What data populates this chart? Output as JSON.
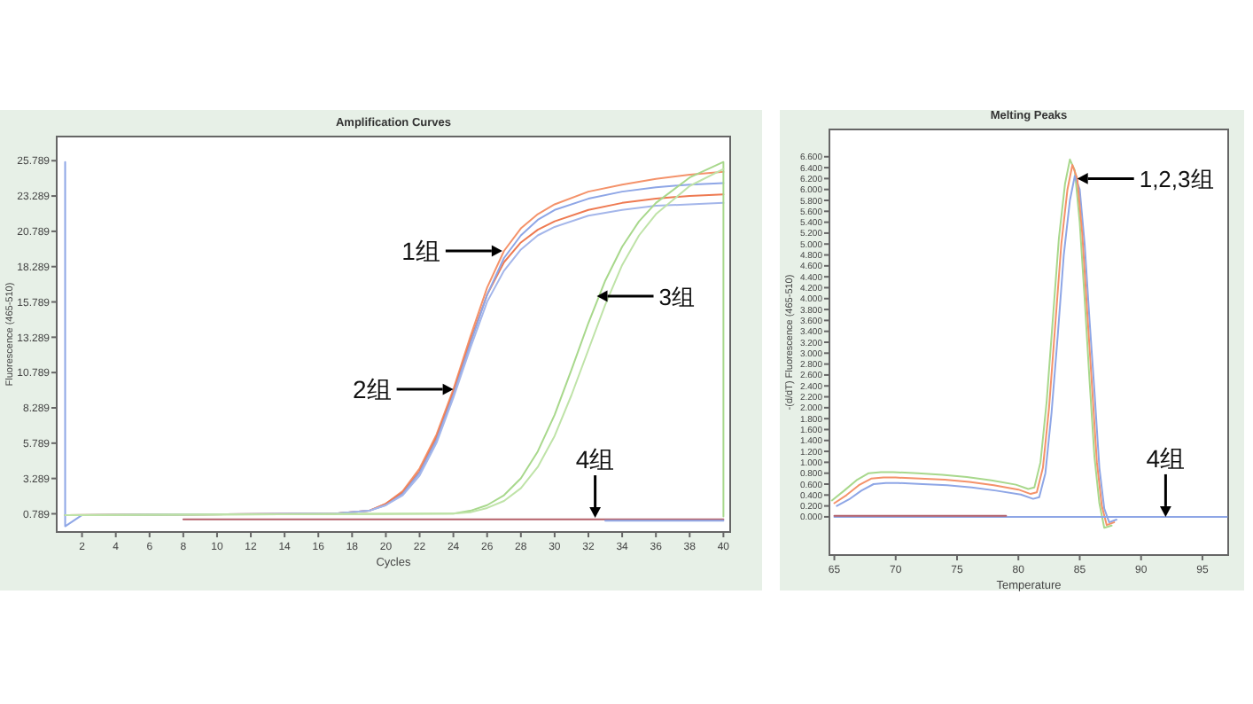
{
  "chart_data": [
    {
      "type": "line",
      "title": "Amplification Curves",
      "xlabel": "Cycles",
      "ylabel": "Fluorescence (465-510)",
      "xlim": [
        0.5,
        40.4
      ],
      "ylim": [
        -0.5,
        27.5
      ],
      "xticks": [
        2,
        4,
        6,
        8,
        10,
        12,
        14,
        16,
        18,
        20,
        22,
        24,
        26,
        28,
        30,
        32,
        34,
        36,
        38,
        40
      ],
      "yticks": [
        0.789,
        3.289,
        5.789,
        8.289,
        10.789,
        13.289,
        15.789,
        18.289,
        20.789,
        23.289,
        25.789
      ],
      "series": [
        {
          "color": "#f4926a",
          "x": [
            1,
            17,
            19,
            20,
            21,
            22,
            23,
            24,
            25,
            26,
            27,
            28,
            29,
            30,
            32,
            34,
            36,
            38,
            40
          ],
          "values": [
            0.7,
            0.8,
            1.0,
            1.5,
            2.4,
            4.0,
            6.4,
            9.6,
            13.3,
            16.8,
            19.4,
            21.0,
            22.0,
            22.7,
            23.6,
            24.1,
            24.5,
            24.8,
            25.0
          ]
        },
        {
          "color": "#ee7a52",
          "x": [
            1,
            17,
            19,
            20,
            21,
            22,
            23,
            24,
            25,
            26,
            27,
            28,
            29,
            30,
            32,
            34,
            36,
            38,
            40
          ],
          "values": [
            0.7,
            0.8,
            1.0,
            1.5,
            2.3,
            3.8,
            6.2,
            9.4,
            13.0,
            16.3,
            18.6,
            20.0,
            20.9,
            21.5,
            22.3,
            22.8,
            23.1,
            23.3,
            23.4
          ]
        },
        {
          "color": "#8ea6e6",
          "x": [
            1,
            1,
            2,
            17,
            19,
            20,
            21,
            22,
            23,
            24,
            25,
            26,
            27,
            28,
            29,
            30,
            32,
            34,
            36,
            38,
            40
          ],
          "values": [
            25.7,
            -0.1,
            0.7,
            0.8,
            1.0,
            1.4,
            2.2,
            3.7,
            6.0,
            9.2,
            12.8,
            16.3,
            18.9,
            20.5,
            21.6,
            22.3,
            23.1,
            23.6,
            23.9,
            24.1,
            24.2
          ]
        },
        {
          "color": "#a4b6ea",
          "x": [
            1,
            17,
            19,
            20,
            21,
            22,
            23,
            24,
            25,
            26,
            27,
            28,
            29,
            30,
            32,
            34,
            36,
            38,
            40
          ],
          "values": [
            0.7,
            0.8,
            1.0,
            1.4,
            2.1,
            3.5,
            5.8,
            9.0,
            12.5,
            15.8,
            18.0,
            19.5,
            20.5,
            21.1,
            21.9,
            22.3,
            22.6,
            22.7,
            22.8
          ]
        },
        {
          "color": "#a8d88c",
          "x": [
            1,
            24,
            25,
            26,
            27,
            28,
            29,
            30,
            31,
            32,
            33,
            34,
            35,
            36,
            38,
            40,
            40
          ],
          "values": [
            0.7,
            0.8,
            1.0,
            1.4,
            2.1,
            3.3,
            5.2,
            7.8,
            11.0,
            14.3,
            17.3,
            19.7,
            21.5,
            22.8,
            24.6,
            25.7,
            0.6
          ]
        },
        {
          "color": "#bfe3a8",
          "x": [
            1,
            24,
            25,
            26,
            27,
            28,
            29,
            30,
            31,
            32,
            33,
            34,
            35,
            36,
            38,
            40
          ],
          "values": [
            0.7,
            0.8,
            0.9,
            1.2,
            1.7,
            2.6,
            4.1,
            6.3,
            9.2,
            12.4,
            15.6,
            18.4,
            20.5,
            22.0,
            24.0,
            25.2
          ]
        },
        {
          "color": "#b5606a",
          "x": [
            8,
            40
          ],
          "values": [
            0.4,
            0.4
          ]
        },
        {
          "color": "#8ea6e6",
          "x": [
            33,
            40
          ],
          "values": [
            0.3,
            0.3
          ]
        }
      ],
      "annotations": [
        {
          "text": "1组",
          "x": 26.9,
          "y": 19.4
        },
        {
          "text": "2组",
          "x": 24,
          "y": 9.6
        },
        {
          "text": "3组",
          "x": 32.5,
          "y": 16.2
        },
        {
          "text": "4组",
          "x": 32.4,
          "y": 0.5
        }
      ]
    },
    {
      "type": "line",
      "title": "Melting Peaks",
      "xlabel": "Temperature",
      "ylabel": "-(d/dT) Fluorescence (465-510)",
      "xlim": [
        64.6,
        97.1
      ],
      "ylim": [
        -0.7,
        7.1
      ],
      "xticks": [
        65,
        70,
        75,
        80,
        85,
        90,
        95
      ],
      "yticks": [
        {
          "value": 0,
          "label": "0.000"
        },
        {
          "value": 0.2,
          "label": "0.200"
        },
        {
          "value": 0.4,
          "label": "0.400"
        },
        {
          "value": 0.6,
          "label": "0.600"
        },
        {
          "value": 0.8,
          "label": "0.800"
        },
        {
          "value": 1.0,
          "label": "1.000"
        },
        {
          "value": 1.2,
          "label": "1.200"
        },
        {
          "value": 1.4,
          "label": "1.400"
        },
        {
          "value": 1.6,
          "label": "1.600"
        },
        {
          "value": 1.8,
          "label": "1.800"
        },
        {
          "value": 2.0,
          "label": "2.000"
        },
        {
          "value": 2.2,
          "label": "2.200"
        },
        {
          "value": 2.4,
          "label": "2.400"
        },
        {
          "value": 2.6,
          "label": "2.600"
        },
        {
          "value": 2.8,
          "label": "2.800"
        },
        {
          "value": 3.0,
          "label": "3.000"
        },
        {
          "value": 3.2,
          "label": "3.200"
        },
        {
          "value": 3.4,
          "label": "3.400"
        },
        {
          "value": 3.6,
          "label": "3.600"
        },
        {
          "value": 3.8,
          "label": "3.800"
        },
        {
          "value": 4.0,
          "label": "4.000"
        },
        {
          "value": 4.2,
          "label": "4.200"
        },
        {
          "value": 4.4,
          "label": "4.400"
        },
        {
          "value": 4.6,
          "label": "4.600"
        },
        {
          "value": 4.8,
          "label": "4.800"
        },
        {
          "value": 5.0,
          "label": "5.000"
        },
        {
          "value": 5.2,
          "label": "5.200"
        },
        {
          "value": 5.4,
          "label": "5.400"
        },
        {
          "value": 5.6,
          "label": "5.600"
        },
        {
          "value": 5.8,
          "label": "5.800"
        },
        {
          "value": 6.0,
          "label": "6.000"
        },
        {
          "value": 6.2,
          "label": "6.200"
        },
        {
          "value": 6.4,
          "label": "6.400"
        },
        {
          "value": 6.6,
          "label": "6.600"
        }
      ],
      "series": [
        {
          "color": "#a8d88c",
          "x": [
            64.8,
            65.8,
            66.8,
            67.8,
            68.8,
            69.8,
            71.8,
            73.8,
            75.8,
            77.8,
            79.8,
            80.8,
            81.3,
            81.8,
            82.3,
            82.8,
            83.3,
            83.8,
            84.2,
            84.6,
            85.0,
            85.4,
            85.8,
            86.2,
            86.6,
            87.0,
            87.6
          ],
          "values": [
            0.3,
            0.48,
            0.67,
            0.8,
            0.82,
            0.82,
            0.8,
            0.77,
            0.73,
            0.67,
            0.59,
            0.51,
            0.54,
            1.0,
            2.1,
            3.6,
            5.1,
            6.1,
            6.55,
            6.35,
            5.4,
            4.0,
            2.5,
            1.1,
            0.25,
            -0.2,
            -0.16
          ]
        },
        {
          "color": "#8ea6e6",
          "x": [
            65.2,
            66.2,
            67.2,
            68.2,
            69.2,
            70.2,
            72.2,
            74.2,
            76.2,
            78.2,
            80.2,
            81.2,
            81.7,
            82.2,
            82.7,
            83.2,
            83.7,
            84.2,
            84.6,
            85.0,
            85.4,
            85.8,
            86.2,
            86.6,
            87.0,
            87.4,
            88.0
          ],
          "values": [
            0.2,
            0.32,
            0.48,
            0.6,
            0.62,
            0.62,
            0.6,
            0.58,
            0.54,
            0.48,
            0.41,
            0.33,
            0.36,
            0.8,
            1.9,
            3.3,
            4.8,
            5.8,
            6.25,
            6.0,
            5.0,
            3.6,
            2.3,
            0.9,
            0.15,
            -0.1,
            -0.05
          ]
        },
        {
          "color": "#f4926a",
          "x": [
            65,
            66,
            67,
            68,
            69,
            70,
            72,
            74,
            76,
            78,
            80,
            81,
            81.5,
            82,
            82.5,
            83,
            83.5,
            84,
            84.4,
            84.8,
            85.2,
            85.6,
            86,
            86.4,
            86.8,
            87.2,
            87.8
          ],
          "values": [
            0.25,
            0.4,
            0.58,
            0.7,
            0.72,
            0.72,
            0.7,
            0.68,
            0.64,
            0.58,
            0.5,
            0.42,
            0.45,
            0.9,
            2.0,
            3.5,
            5.0,
            6.0,
            6.45,
            6.2,
            5.2,
            3.8,
            2.4,
            1.0,
            0.2,
            -0.15,
            -0.1
          ]
        },
        {
          "color": "#8ea6e6",
          "x": [
            65,
            97
          ],
          "values": [
            0,
            0
          ]
        },
        {
          "color": "#b5606a",
          "x": [
            65,
            79
          ],
          "values": [
            0.02,
            0.02
          ]
        }
      ],
      "annotations": [
        {
          "text": "1,2,3组",
          "x": 84.8,
          "y": 6.2
        },
        {
          "text": "4组",
          "x": 92,
          "y": 0
        }
      ]
    }
  ]
}
